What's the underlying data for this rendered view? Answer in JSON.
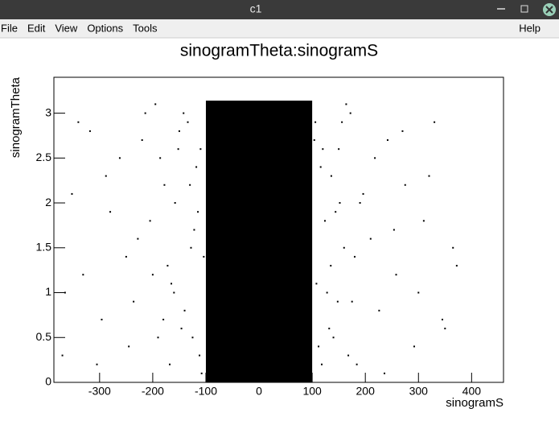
{
  "window": {
    "title": "c1",
    "menu": [
      "File",
      "Edit",
      "View",
      "Options",
      "Tools"
    ],
    "help": "Help"
  },
  "chart_data": {
    "type": "scatter",
    "title": "sinogramTheta:sinogramS",
    "x_label": "sinogramS",
    "y_label": "sinogramTheta",
    "xlim": [
      -386,
      460
    ],
    "ylim": [
      0,
      3.4
    ],
    "xticks": [
      -300,
      -200,
      -100,
      0,
      100,
      200,
      300,
      400
    ],
    "yticks": [
      0,
      0.5,
      1,
      1.5,
      2,
      2.5,
      3
    ],
    "color": "#000000",
    "dense_band": {
      "x": [
        -100,
        100
      ],
      "y": [
        0,
        3.14
      ]
    },
    "x": [
      -370,
      -352,
      -331,
      -318,
      -296,
      -280,
      -262,
      -245,
      -228,
      -214,
      -365,
      -340,
      -305,
      -288,
      -250,
      -236,
      -220,
      -205,
      -190,
      -178,
      -165,
      -152,
      -140,
      -128,
      -118,
      -108,
      -195,
      -172,
      -158,
      -146,
      -134,
      -122,
      -112,
      -186,
      -160,
      -130,
      -104,
      -168,
      -142,
      -115,
      -180,
      -150,
      -125,
      -110,
      -200,
      104,
      112,
      124,
      136,
      148,
      160,
      172,
      184,
      196,
      108,
      120,
      132,
      144,
      156,
      168,
      180,
      116,
      128,
      140,
      152,
      164,
      210,
      226,
      242,
      258,
      275,
      292,
      310,
      330,
      350,
      372,
      218,
      236,
      254,
      270,
      300,
      320,
      345,
      365,
      190,
      175,
      150,
      135,
      118,
      106
    ],
    "y": [
      0.3,
      2.1,
      1.2,
      2.8,
      0.7,
      1.9,
      2.5,
      0.4,
      1.6,
      3.0,
      1.0,
      2.9,
      0.2,
      2.3,
      1.4,
      0.9,
      2.7,
      1.8,
      0.5,
      2.2,
      1.1,
      2.6,
      0.8,
      1.5,
      2.4,
      0.1,
      3.1,
      1.3,
      2.0,
      0.6,
      2.9,
      1.7,
      0.3,
      2.5,
      1.0,
      2.2,
      1.4,
      0.2,
      3.0,
      1.9,
      0.7,
      2.8,
      0.5,
      2.6,
      1.2,
      2.7,
      0.4,
      1.8,
      2.3,
      0.9,
      1.5,
      3.0,
      0.2,
      2.1,
      1.1,
      2.6,
      0.6,
      1.9,
      2.9,
      0.3,
      1.4,
      2.4,
      1.0,
      0.5,
      2.0,
      3.1,
      1.6,
      0.8,
      2.7,
      1.2,
      2.2,
      0.4,
      1.8,
      2.9,
      0.6,
      1.3,
      2.5,
      0.1,
      1.7,
      2.8,
      1.0,
      2.3,
      0.7,
      1.5,
      2.0,
      0.9,
      2.6,
      1.3,
      0.2,
      2.9
    ]
  }
}
